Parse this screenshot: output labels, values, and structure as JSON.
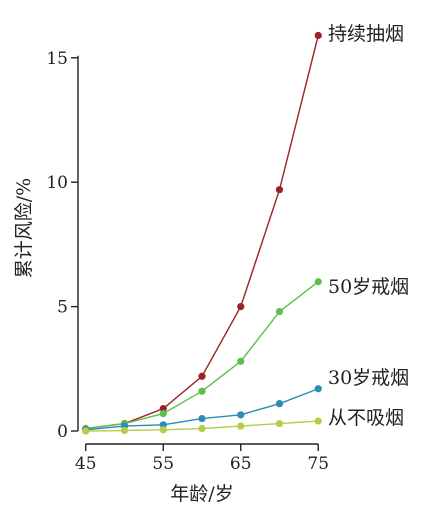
{
  "chart_data": {
    "type": "line",
    "title": "",
    "xlabel": "年龄/岁",
    "ylabel": "累计风险/%",
    "x": [
      45,
      50,
      55,
      60,
      65,
      70,
      75
    ],
    "xlim": [
      44,
      76
    ],
    "ylim": [
      -0.2,
      16.6
    ],
    "xticks": [
      45,
      55,
      65,
      75
    ],
    "yticks": [
      0,
      5,
      10,
      15
    ],
    "xtick_labels": [
      "45",
      "55",
      "65",
      "75"
    ],
    "ytick_labels": [
      "0",
      "5",
      "10",
      "15"
    ],
    "grid": false,
    "legend": "series labels at right end of lines",
    "series": [
      {
        "name": "持续抽烟",
        "color": "#9b2226",
        "values": [
          0.1,
          0.3,
          0.9,
          2.2,
          5.0,
          9.7,
          15.9
        ]
      },
      {
        "name": "50岁戒烟",
        "color": "#5cbf4c",
        "values": [
          0.1,
          0.3,
          0.7,
          1.6,
          2.8,
          4.8,
          6.0
        ]
      },
      {
        "name": "30岁戒烟",
        "color": "#2b8cb6",
        "values": [
          0.05,
          0.2,
          0.25,
          0.5,
          0.65,
          1.1,
          1.7
        ]
      },
      {
        "name": "从不吸烟",
        "color": "#b5cc48",
        "values": [
          0.0,
          0.02,
          0.05,
          0.1,
          0.2,
          0.3,
          0.4
        ]
      }
    ]
  }
}
